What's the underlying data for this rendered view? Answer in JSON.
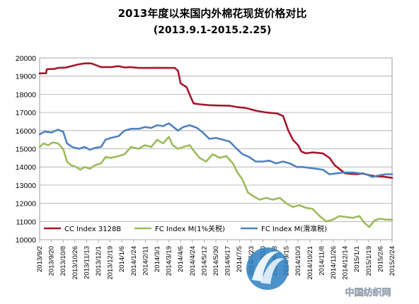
{
  "chart_data": {
    "type": "line",
    "title": "2013年度以来国内外棉花现货价格对比",
    "subtitle": "(2013.9.1-2015.2.25)",
    "xlabel": "",
    "ylabel": "",
    "ylim": [
      10000,
      20000
    ],
    "yticks": [
      10000,
      11000,
      12000,
      13000,
      14000,
      15000,
      16000,
      17000,
      18000,
      19000,
      20000
    ],
    "grid": true,
    "legend_position": "bottom",
    "x_range": [
      "2013/9/2",
      "2015/2/24"
    ],
    "categories": [
      "2013/9/2",
      "2013/9/20",
      "2013/10/8",
      "2013/10/26",
      "2013/11/13",
      "2013/12/1",
      "2013/12/19",
      "2014/1/6",
      "2014/1/24",
      "2014/2/11",
      "2014/3/1",
      "2014/3/19",
      "2014/4/6",
      "2014/4/24",
      "2014/5/12",
      "2014/5/30",
      "2014/6/17",
      "2014/7/5",
      "2014/7/23",
      "2014/8/10",
      "2014/8/28",
      "2014/9/15",
      "2014/10/3",
      "2014/10/21",
      "2014/11/8",
      "2014/11/26",
      "2014/12/14",
      "2015/1/1",
      "2015/1/19",
      "2015/2/6",
      "2015/2/24"
    ],
    "series": [
      {
        "name": "CC Index 3128B",
        "color": "#a6162a",
        "points": [
          [
            "2013/9/2",
            19150
          ],
          [
            "2013/9/12",
            19160
          ],
          [
            "2013/9/13",
            19380
          ],
          [
            "2013/9/25",
            19400
          ],
          [
            "2013/9/30",
            19450
          ],
          [
            "2013/10/12",
            19470
          ],
          [
            "2013/10/20",
            19550
          ],
          [
            "2013/11/1",
            19650
          ],
          [
            "2013/11/10",
            19700
          ],
          [
            "2013/11/20",
            19700
          ],
          [
            "2013/11/28",
            19600
          ],
          [
            "2013/12/5",
            19500
          ],
          [
            "2013/12/20",
            19500
          ],
          [
            "2014/1/1",
            19550
          ],
          [
            "2014/1/10",
            19480
          ],
          [
            "2014/1/20",
            19500
          ],
          [
            "2014/2/1",
            19450
          ],
          [
            "2014/2/20",
            19450
          ],
          [
            "2014/3/1",
            19460
          ],
          [
            "2014/3/15",
            19450
          ],
          [
            "2014/3/28",
            19450
          ],
          [
            "2014/4/2",
            19300
          ],
          [
            "2014/4/6",
            18600
          ],
          [
            "2014/4/15",
            18400
          ],
          [
            "2014/4/22",
            17800
          ],
          [
            "2014/4/26",
            17500
          ],
          [
            "2014/5/5",
            17450
          ],
          [
            "2014/5/20",
            17400
          ],
          [
            "2014/6/5",
            17380
          ],
          [
            "2014/6/20",
            17370
          ],
          [
            "2014/7/1",
            17300
          ],
          [
            "2014/7/15",
            17250
          ],
          [
            "2014/7/30",
            17100
          ],
          [
            "2014/8/15",
            17000
          ],
          [
            "2014/9/1",
            16950
          ],
          [
            "2014/9/10",
            16800
          ],
          [
            "2014/9/18",
            16000
          ],
          [
            "2014/9/25",
            15500
          ],
          [
            "2014/10/3",
            15200
          ],
          [
            "2014/10/8",
            14850
          ],
          [
            "2014/10/15",
            14750
          ],
          [
            "2014/10/25",
            14800
          ],
          [
            "2014/11/10",
            14750
          ],
          [
            "2014/11/20",
            14500
          ],
          [
            "2014/11/28",
            14100
          ],
          [
            "2014/12/5",
            13900
          ],
          [
            "2014/12/14",
            13650
          ],
          [
            "2015/1/1",
            13600
          ],
          [
            "2015/1/10",
            13650
          ],
          [
            "2015/1/20",
            13550
          ],
          [
            "2015/2/1",
            13480
          ],
          [
            "2015/2/10",
            13470
          ],
          [
            "2015/2/24",
            13400
          ]
        ]
      },
      {
        "name": "FC Index M(1%关税)",
        "color": "#9bbb59",
        "points": [
          [
            "2013/9/2",
            15100
          ],
          [
            "2013/9/8",
            15300
          ],
          [
            "2013/9/15",
            15200
          ],
          [
            "2013/9/22",
            15350
          ],
          [
            "2013/9/30",
            15300
          ],
          [
            "2013/10/8",
            15000
          ],
          [
            "2013/10/14",
            14300
          ],
          [
            "2013/10/20",
            14100
          ],
          [
            "2013/10/28",
            14000
          ],
          [
            "2013/11/3",
            13850
          ],
          [
            "2013/11/10",
            14000
          ],
          [
            "2013/11/18",
            13900
          ],
          [
            "2013/11/26",
            14100
          ],
          [
            "2013/12/5",
            14200
          ],
          [
            "2013/12/12",
            14550
          ],
          [
            "2013/12/20",
            14500
          ],
          [
            "2014/1/1",
            14600
          ],
          [
            "2014/1/10",
            14700
          ],
          [
            "2014/1/20",
            15100
          ],
          [
            "2014/2/1",
            15000
          ],
          [
            "2014/2/10",
            15200
          ],
          [
            "2014/2/20",
            15100
          ],
          [
            "2014/3/1",
            15500
          ],
          [
            "2014/3/10",
            15300
          ],
          [
            "2014/3/19",
            15650
          ],
          [
            "2014/3/25",
            15200
          ],
          [
            "2014/4/2",
            15000
          ],
          [
            "2014/4/10",
            15100
          ],
          [
            "2014/4/20",
            15200
          ],
          [
            "2014/4/28",
            14800
          ],
          [
            "2014/5/5",
            14500
          ],
          [
            "2014/5/15",
            14300
          ],
          [
            "2014/5/25",
            14700
          ],
          [
            "2014/6/5",
            14500
          ],
          [
            "2014/6/15",
            14600
          ],
          [
            "2014/6/25",
            14200
          ],
          [
            "2014/7/2",
            13700
          ],
          [
            "2014/7/10",
            13300
          ],
          [
            "2014/7/18",
            12600
          ],
          [
            "2014/7/26",
            12400
          ],
          [
            "2014/8/5",
            12200
          ],
          [
            "2014/8/15",
            12300
          ],
          [
            "2014/8/25",
            12200
          ],
          [
            "2014/9/5",
            12300
          ],
          [
            "2014/9/15",
            12000
          ],
          [
            "2014/9/25",
            11800
          ],
          [
            "2014/10/5",
            11900
          ],
          [
            "2014/10/15",
            11750
          ],
          [
            "2014/10/25",
            11700
          ],
          [
            "2014/11/5",
            11300
          ],
          [
            "2014/11/15",
            11000
          ],
          [
            "2014/11/25",
            11100
          ],
          [
            "2014/12/5",
            11300
          ],
          [
            "2014/12/15",
            11250
          ],
          [
            "2014/12/25",
            11200
          ],
          [
            "2015/1/5",
            11300
          ],
          [
            "2015/1/12",
            10950
          ],
          [
            "2015/1/20",
            10700
          ],
          [
            "2015/1/28",
            11050
          ],
          [
            "2015/2/5",
            11150
          ],
          [
            "2015/2/15",
            11100
          ],
          [
            "2015/2/24",
            11100
          ]
        ]
      },
      {
        "name": "FC Index M(滑准税)",
        "color": "#4f81bd",
        "points": [
          [
            "2013/9/2",
            15800
          ],
          [
            "2013/9/10",
            15950
          ],
          [
            "2013/9/20",
            15900
          ],
          [
            "2013/9/30",
            16050
          ],
          [
            "2013/10/8",
            15950
          ],
          [
            "2013/10/14",
            15300
          ],
          [
            "2013/10/22",
            15100
          ],
          [
            "2013/11/1",
            15000
          ],
          [
            "2013/11/10",
            15100
          ],
          [
            "2013/11/18",
            14950
          ],
          [
            "2013/11/26",
            15050
          ],
          [
            "2013/12/5",
            15100
          ],
          [
            "2013/12/12",
            15500
          ],
          [
            "2013/12/20",
            15600
          ],
          [
            "2014/1/1",
            15700
          ],
          [
            "2014/1/10",
            16000
          ],
          [
            "2014/1/20",
            16100
          ],
          [
            "2014/2/1",
            16100
          ],
          [
            "2014/2/10",
            16200
          ],
          [
            "2014/2/20",
            16150
          ],
          [
            "2014/3/1",
            16300
          ],
          [
            "2014/3/10",
            16250
          ],
          [
            "2014/3/19",
            16400
          ],
          [
            "2014/3/26",
            16200
          ],
          [
            "2014/4/2",
            16000
          ],
          [
            "2014/4/10",
            16200
          ],
          [
            "2014/4/20",
            16300
          ],
          [
            "2014/5/1",
            16150
          ],
          [
            "2014/5/10",
            15900
          ],
          [
            "2014/5/20",
            15550
          ],
          [
            "2014/5/30",
            15600
          ],
          [
            "2014/6/10",
            15500
          ],
          [
            "2014/6/20",
            15400
          ],
          [
            "2014/7/1",
            15000
          ],
          [
            "2014/7/10",
            14700
          ],
          [
            "2014/7/20",
            14550
          ],
          [
            "2014/7/30",
            14300
          ],
          [
            "2014/8/10",
            14300
          ],
          [
            "2014/8/20",
            14350
          ],
          [
            "2014/8/30",
            14200
          ],
          [
            "2014/9/10",
            14300
          ],
          [
            "2014/9/20",
            14200
          ],
          [
            "2014/10/1",
            14000
          ],
          [
            "2014/10/10",
            14000
          ],
          [
            "2014/10/20",
            13950
          ],
          [
            "2014/11/1",
            13900
          ],
          [
            "2014/11/10",
            13850
          ],
          [
            "2014/11/20",
            13600
          ],
          [
            "2014/12/1",
            13650
          ],
          [
            "2014/12/14",
            13700
          ],
          [
            "2014/12/25",
            13700
          ],
          [
            "2015/1/5",
            13650
          ],
          [
            "2015/1/15",
            13600
          ],
          [
            "2015/1/25",
            13450
          ],
          [
            "2015/2/5",
            13550
          ],
          [
            "2015/2/15",
            13600
          ],
          [
            "2015/2/24",
            13600
          ]
        ]
      }
    ]
  },
  "watermark": {
    "text": "中国纺织网"
  }
}
